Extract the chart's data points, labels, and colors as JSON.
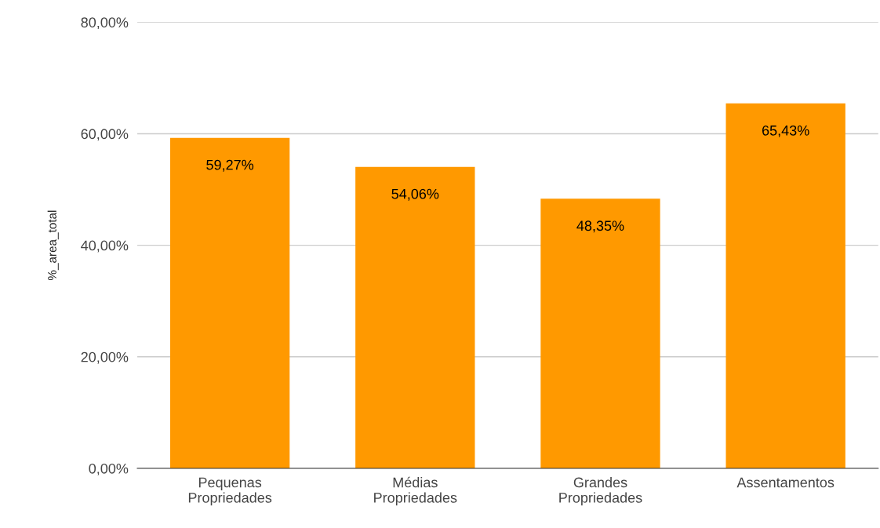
{
  "chart_data": {
    "type": "bar",
    "ylabel": "%_area_total",
    "categories": [
      "Pequenas Propriedades",
      "Médias Propriedades",
      "Grandes Propriedades",
      "Assentamentos"
    ],
    "values": [
      59.27,
      54.06,
      48.35,
      65.43
    ],
    "value_labels": [
      "59,27%",
      "54,06%",
      "48,35%",
      "65,43%"
    ],
    "color": "#ff9900",
    "ylim": [
      0,
      80
    ],
    "yticks": [
      {
        "value": 0,
        "label": "0,00%"
      },
      {
        "value": 20,
        "label": "20,00%"
      },
      {
        "value": 40,
        "label": "40,00%"
      },
      {
        "value": 60,
        "label": "60,00%"
      },
      {
        "value": 80,
        "label": "80,00%"
      }
    ],
    "grid": "y",
    "legend": false
  }
}
